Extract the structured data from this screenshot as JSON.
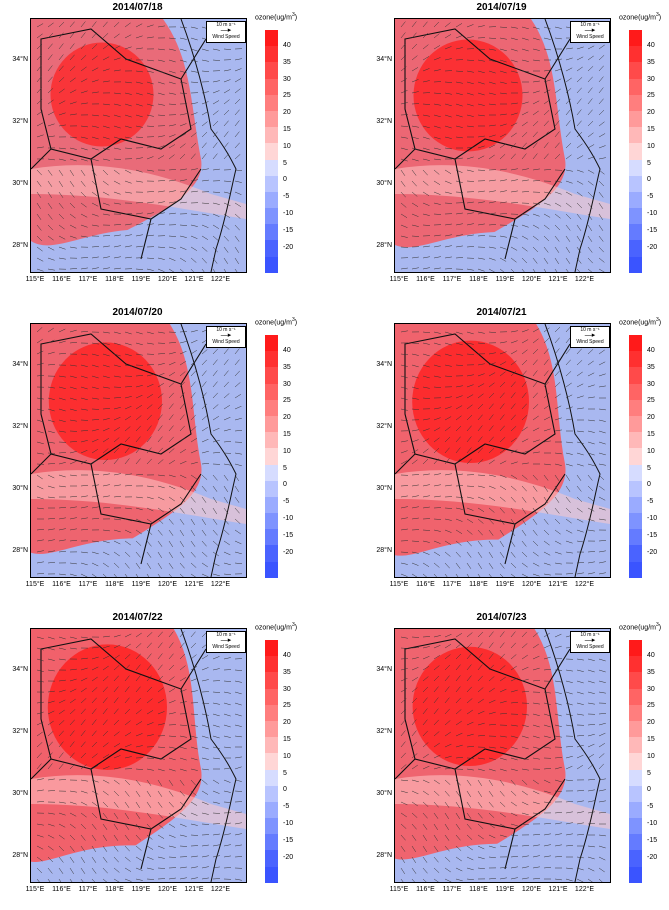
{
  "panels": [
    {
      "title": "2014/07/18",
      "intensity": 0.55
    },
    {
      "title": "2014/07/19",
      "intensity": 0.65
    },
    {
      "title": "2014/07/20",
      "intensity": 0.72
    },
    {
      "title": "2014/07/21",
      "intensity": 0.78
    },
    {
      "title": "2014/07/22",
      "intensity": 0.82
    },
    {
      "title": "2014/07/23",
      "intensity": 0.74
    }
  ],
  "colorbar_title": "ozone(ug/m",
  "colorbar_title_sup": "3",
  "colorbar_title_end": ")",
  "colorbar_labels": [
    "40",
    "35",
    "30",
    "25",
    "20",
    "15",
    "10",
    "5",
    "0",
    "-5",
    "-10",
    "-15",
    "-20"
  ],
  "colorbar_colors": [
    "#ff1a1a",
    "#ff3030",
    "#ff4a4a",
    "#ff6464",
    "#ff7e7e",
    "#ff9a9a",
    "#ffb8b8",
    "#ffd6d6",
    "#d6dcff",
    "#b8c4ff",
    "#9aabff",
    "#7e93ff",
    "#647bff",
    "#4a63ff",
    "#3a54ff"
  ],
  "lat_labels": [
    "34°N",
    "32°N",
    "30°N",
    "28°N"
  ],
  "lon_labels": [
    "115°E",
    "116°E",
    "117°E",
    "118°E",
    "119°E",
    "120°E",
    "121°E",
    "122°E"
  ],
  "wind_legend": {
    "speed": "10 m s⁻¹",
    "label": "Wind Speed"
  }
}
